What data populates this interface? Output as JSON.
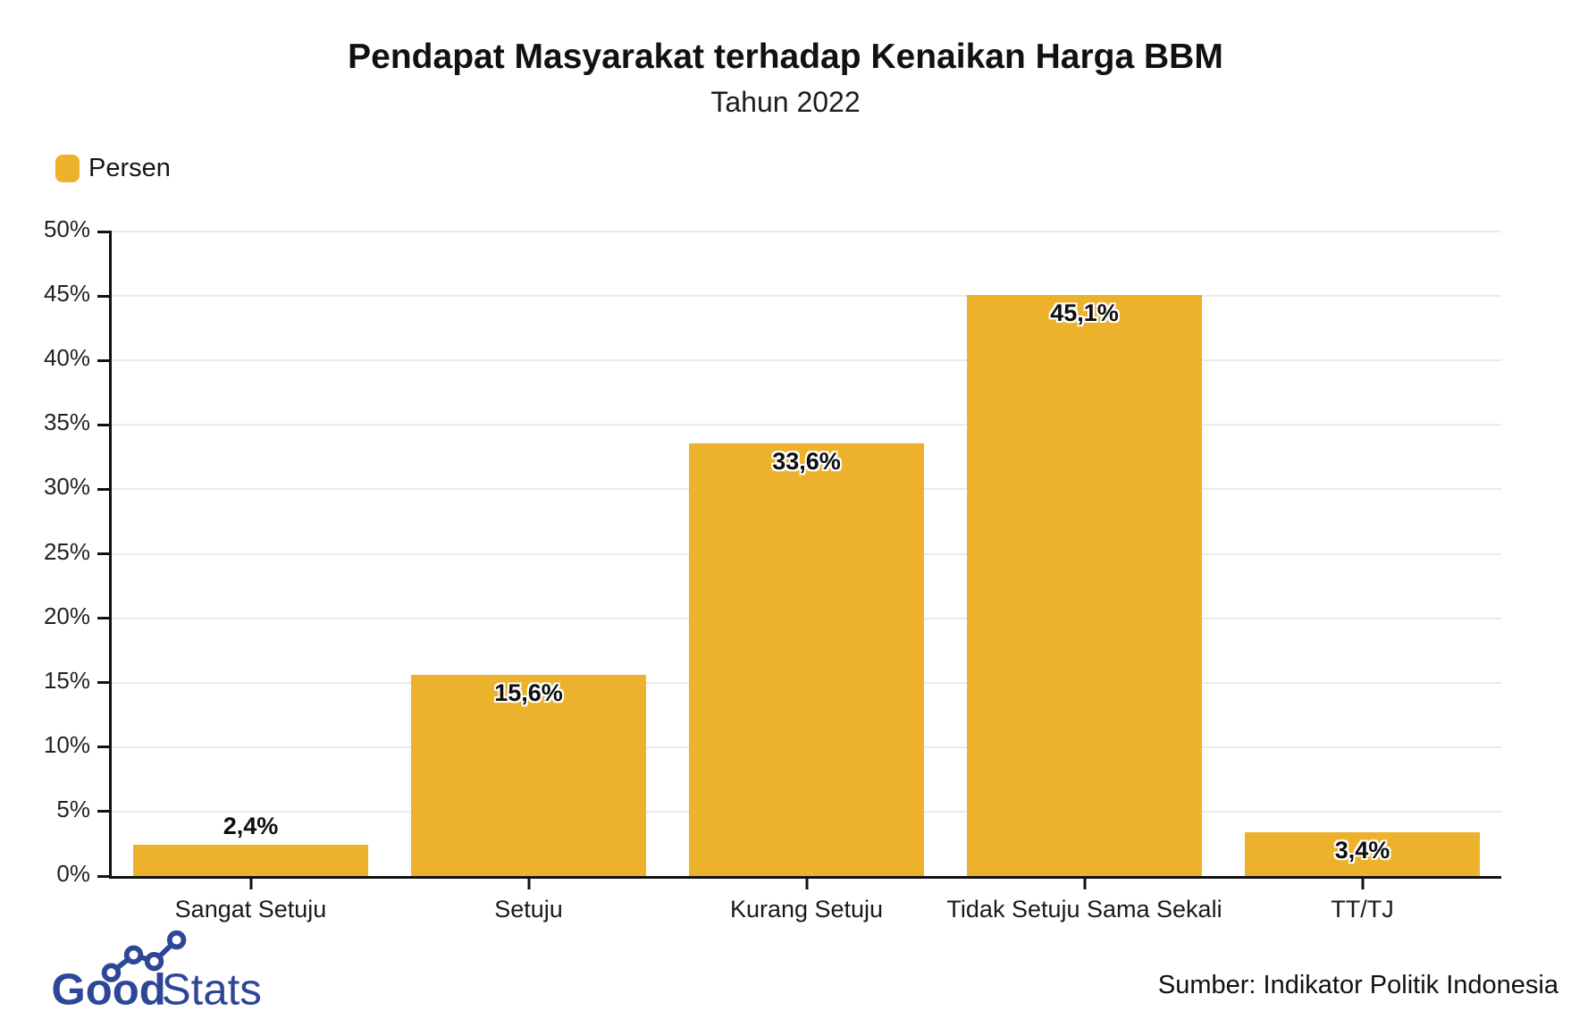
{
  "header": {
    "title": "Pendapat Masyarakat terhadap Kenaikan Harga BBM",
    "subtitle": "Tahun 2022"
  },
  "legend": {
    "label": "Persen",
    "swatch_color": "#ECB22C"
  },
  "chart_data": {
    "type": "bar",
    "title": "Pendapat Masyarakat terhadap Kenaikan Harga BBM",
    "subtitle": "Tahun 2022",
    "series_name": "Persen",
    "categories": [
      "Sangat Setuju",
      "Setuju",
      "Kurang Setuju",
      "Tidak Setuju Sama Sekali",
      "TT/TJ"
    ],
    "values": [
      2.4,
      15.6,
      33.6,
      45.1,
      3.4
    ],
    "value_labels": [
      "2,4%",
      "15,6%",
      "33,6%",
      "45,1%",
      "3,4%"
    ],
    "value_label_positions": [
      "above",
      "inside",
      "inside",
      "inside",
      "inside"
    ],
    "ylim": [
      0,
      50
    ],
    "yticks": [
      0,
      5,
      10,
      15,
      20,
      25,
      30,
      35,
      40,
      45,
      50
    ],
    "ytick_labels": [
      "0%",
      "5%",
      "10%",
      "15%",
      "20%",
      "25%",
      "30%",
      "35%",
      "40%",
      "45%",
      "50%"
    ],
    "xlabel": "",
    "ylabel": "",
    "bar_color": "#ECB22C",
    "grid": "horizontal",
    "legend_position": "top-left"
  },
  "footer": {
    "logo_part_bold": "Good",
    "logo_part_light": "Stats",
    "logo_color": "#2D4697",
    "source": "Sumber: Indikator Politik Indonesia"
  }
}
